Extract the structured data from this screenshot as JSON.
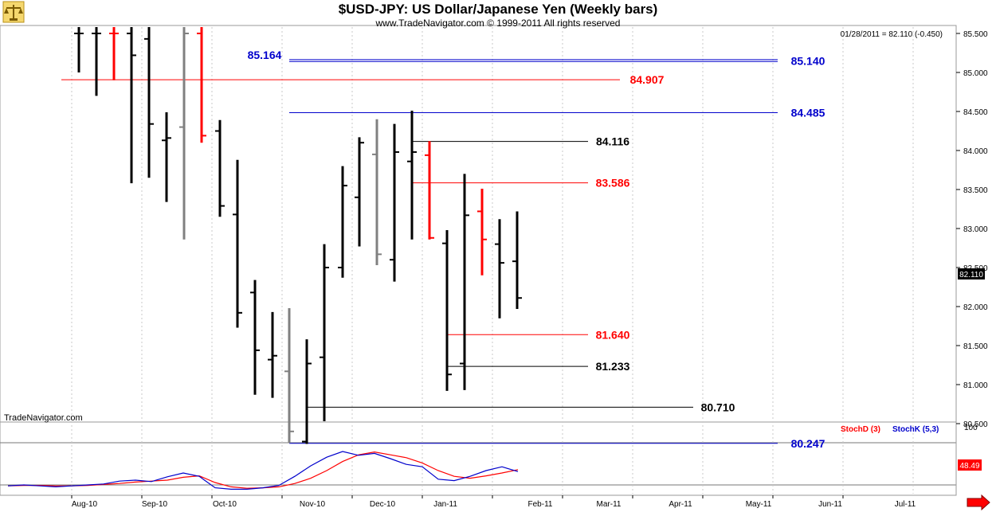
{
  "header": {
    "title": "$USD-JPY:  US Dollar/Japanese Yen  (Weekly bars)",
    "subtitle": "www.TradeNavigator.com © 1999-2011 All rights reserved",
    "quote": "01/28/2011 = 82.110 (-0.450)",
    "watermark": "TradeNavigator.com",
    "logo_icon": "scales-icon",
    "scroll_icon": "right-arrow-icon"
  },
  "colors": {
    "up": "#000000",
    "down": "#ff0000",
    "neutral": "#808080",
    "blue": "#0000cc",
    "red": "#ff0000",
    "black": "#000000",
    "grid": "#c8c8c8"
  },
  "chart_data": {
    "type": "ohlc",
    "y_ticks": [
      "85.500",
      "85.000",
      "84.500",
      "84.000",
      "83.500",
      "83.000",
      "82.500",
      "82.000",
      "81.500",
      "81.000",
      "80.500"
    ],
    "ylim": [
      80.2,
      85.6
    ],
    "last_price_label": "82.110",
    "x_labels": [
      "Aug-10",
      "Sep-10",
      "Oct-10",
      "Nov-10",
      "Dec-10",
      "Jan-11",
      "Feb-11",
      "Mar-11",
      "Apr-11",
      "May-11",
      "Jun-11",
      "Jul-11"
    ],
    "bars": [
      {
        "o": 85.5,
        "h": 85.6,
        "l": 85.0,
        "c": 85.5,
        "color": "black"
      },
      {
        "o": 85.5,
        "h": 85.6,
        "l": 84.7,
        "c": 85.5,
        "color": "black"
      },
      {
        "o": 85.5,
        "h": 85.6,
        "l": 84.9,
        "c": 85.5,
        "color": "red"
      },
      {
        "o": 85.5,
        "h": 85.6,
        "l": 83.58,
        "c": 85.22,
        "color": "black"
      },
      {
        "o": 85.43,
        "h": 85.6,
        "l": 83.65,
        "c": 84.34,
        "color": "black"
      },
      {
        "o": 84.13,
        "h": 84.49,
        "l": 83.34,
        "c": 84.16,
        "color": "black"
      },
      {
        "o": 84.3,
        "h": 85.6,
        "l": 82.86,
        "c": 85.5,
        "color": "gray"
      },
      {
        "o": 85.5,
        "h": 85.6,
        "l": 84.1,
        "c": 84.19,
        "color": "red"
      },
      {
        "o": 84.25,
        "h": 84.39,
        "l": 83.15,
        "c": 83.29,
        "color": "black"
      },
      {
        "o": 83.18,
        "h": 83.88,
        "l": 81.73,
        "c": 81.92,
        "color": "black"
      },
      {
        "o": 82.18,
        "h": 82.34,
        "l": 80.87,
        "c": 81.44,
        "color": "black"
      },
      {
        "o": 81.32,
        "h": 81.93,
        "l": 80.83,
        "c": 81.37,
        "color": "black"
      },
      {
        "o": 81.17,
        "h": 81.98,
        "l": 80.25,
        "c": 80.4,
        "color": "gray"
      },
      {
        "o": 80.27,
        "h": 81.58,
        "l": 80.24,
        "c": 81.27,
        "color": "black"
      },
      {
        "o": 81.35,
        "h": 82.8,
        "l": 80.53,
        "c": 82.5,
        "color": "black"
      },
      {
        "o": 82.5,
        "h": 83.8,
        "l": 82.37,
        "c": 83.55,
        "color": "black"
      },
      {
        "o": 83.4,
        "h": 84.17,
        "l": 82.77,
        "c": 84.1,
        "color": "black"
      },
      {
        "o": 83.95,
        "h": 84.4,
        "l": 82.53,
        "c": 82.67,
        "color": "gray"
      },
      {
        "o": 82.6,
        "h": 84.34,
        "l": 82.32,
        "c": 83.98,
        "color": "black"
      },
      {
        "o": 83.86,
        "h": 84.51,
        "l": 82.86,
        "c": 83.98,
        "color": "black"
      },
      {
        "o": 83.94,
        "h": 84.12,
        "l": 82.86,
        "c": 82.88,
        "color": "red"
      },
      {
        "o": 82.81,
        "h": 82.98,
        "l": 80.92,
        "c": 81.13,
        "color": "black"
      },
      {
        "o": 81.27,
        "h": 83.7,
        "l": 80.93,
        "c": 83.17,
        "color": "black"
      },
      {
        "o": 83.22,
        "h": 83.51,
        "l": 82.4,
        "c": 82.86,
        "color": "red"
      },
      {
        "o": 82.8,
        "h": 83.12,
        "l": 81.85,
        "c": 82.56,
        "color": "black"
      },
      {
        "o": 82.58,
        "h": 83.22,
        "l": 81.97,
        "c": 82.11,
        "color": "black"
      }
    ],
    "levels": [
      {
        "price": 85.164,
        "label": "85.164",
        "color": "blue"
      },
      {
        "price": 85.14,
        "label": "85.140",
        "color": "blue"
      },
      {
        "price": 84.907,
        "label": "84.907",
        "color": "red"
      },
      {
        "price": 84.485,
        "label": "84.485",
        "color": "blue"
      },
      {
        "price": 84.116,
        "label": "84.116",
        "color": "black"
      },
      {
        "price": 83.586,
        "label": "83.586",
        "color": "red"
      },
      {
        "price": 81.64,
        "label": "81.640",
        "color": "red"
      },
      {
        "price": 81.233,
        "label": "81.233",
        "color": "black"
      },
      {
        "price": 80.71,
        "label": "80.710",
        "color": "black"
      },
      {
        "price": 80.247,
        "label": "80.247",
        "color": "blue"
      }
    ],
    "stochastic": {
      "top_label": "100",
      "value_label": "48.49",
      "ylim": [
        0,
        110
      ],
      "legend": [
        {
          "name": "StochD (3)",
          "color": "red"
        },
        {
          "name": "StochK (5,3)",
          "color": "blue"
        }
      ],
      "k": [
        8,
        10,
        8,
        6,
        8,
        10,
        12,
        18,
        20,
        17,
        27,
        35,
        28,
        4,
        1,
        1,
        4,
        9,
        28,
        50,
        68,
        80,
        72,
        76,
        65,
        53,
        48,
        22,
        19,
        28,
        40,
        48,
        38
      ],
      "d": [
        8,
        9,
        9,
        8,
        8,
        9,
        11,
        13,
        16,
        18,
        20,
        26,
        29,
        15,
        6,
        3,
        4,
        6,
        13,
        24,
        40,
        59,
        73,
        79,
        73,
        67,
        56,
        40,
        28,
        24,
        29,
        35,
        42
      ]
    }
  }
}
